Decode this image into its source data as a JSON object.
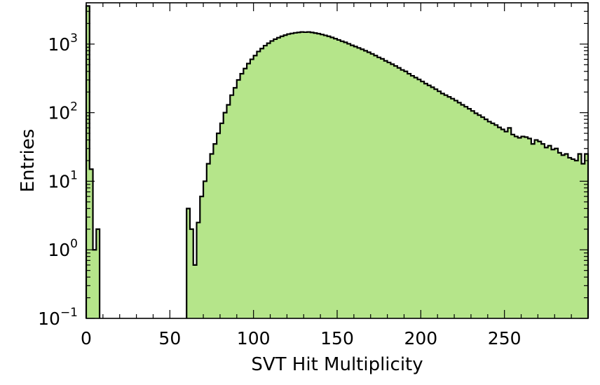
{
  "chart_data": {
    "type": "histogram",
    "title": "",
    "xlabel": "SVT Hit Multiplicity",
    "ylabel": "Entries",
    "yscale": "log",
    "xlim": [
      0,
      300
    ],
    "ylim": [
      0.1,
      4000
    ],
    "bin_width": 2,
    "fill_color": "#b5e58a",
    "line_color": "#000000",
    "grid": false,
    "legend": "none",
    "x_ticks": [
      {
        "value": 0,
        "label": "0"
      },
      {
        "value": 50,
        "label": "50"
      },
      {
        "value": 100,
        "label": "100"
      },
      {
        "value": 150,
        "label": "150"
      },
      {
        "value": 200,
        "label": "200"
      },
      {
        "value": 250,
        "label": "250"
      }
    ],
    "y_ticks": [
      {
        "value": 0.1,
        "base": "10",
        "exp": "−1"
      },
      {
        "value": 1,
        "base": "10",
        "exp": "0"
      },
      {
        "value": 10,
        "base": "10",
        "exp": "1"
      },
      {
        "value": 100,
        "base": "10",
        "exp": "2"
      },
      {
        "value": 1000,
        "base": "10",
        "exp": "3"
      }
    ],
    "bins": [
      [
        0,
        3600
      ],
      [
        2,
        15
      ],
      [
        4,
        1
      ],
      [
        6,
        2
      ],
      [
        60,
        4
      ],
      [
        62,
        2
      ],
      [
        64,
        0.6
      ],
      [
        66,
        2.5
      ],
      [
        68,
        6
      ],
      [
        70,
        10
      ],
      [
        72,
        18
      ],
      [
        74,
        25
      ],
      [
        76,
        35
      ],
      [
        78,
        50
      ],
      [
        80,
        70
      ],
      [
        82,
        100
      ],
      [
        84,
        130
      ],
      [
        86,
        180
      ],
      [
        88,
        230
      ],
      [
        90,
        300
      ],
      [
        92,
        370
      ],
      [
        94,
        440
      ],
      [
        96,
        520
      ],
      [
        98,
        600
      ],
      [
        100,
        680
      ],
      [
        102,
        780
      ],
      [
        104,
        860
      ],
      [
        106,
        950
      ],
      [
        108,
        1030
      ],
      [
        110,
        1110
      ],
      [
        112,
        1180
      ],
      [
        114,
        1240
      ],
      [
        116,
        1300
      ],
      [
        118,
        1350
      ],
      [
        120,
        1400
      ],
      [
        122,
        1430
      ],
      [
        124,
        1460
      ],
      [
        126,
        1480
      ],
      [
        128,
        1500
      ],
      [
        130,
        1490
      ],
      [
        132,
        1500
      ],
      [
        134,
        1480
      ],
      [
        136,
        1450
      ],
      [
        138,
        1420
      ],
      [
        140,
        1380
      ],
      [
        142,
        1340
      ],
      [
        144,
        1300
      ],
      [
        146,
        1250
      ],
      [
        148,
        1200
      ],
      [
        150,
        1150
      ],
      [
        152,
        1100
      ],
      [
        154,
        1060
      ],
      [
        156,
        1010
      ],
      [
        158,
        960
      ],
      [
        160,
        920
      ],
      [
        162,
        880
      ],
      [
        164,
        840
      ],
      [
        166,
        800
      ],
      [
        168,
        760
      ],
      [
        170,
        720
      ],
      [
        172,
        680
      ],
      [
        174,
        640
      ],
      [
        176,
        610
      ],
      [
        178,
        570
      ],
      [
        180,
        540
      ],
      [
        182,
        510
      ],
      [
        184,
        480
      ],
      [
        186,
        450
      ],
      [
        188,
        420
      ],
      [
        190,
        400
      ],
      [
        192,
        370
      ],
      [
        194,
        345
      ],
      [
        196,
        325
      ],
      [
        198,
        305
      ],
      [
        200,
        285
      ],
      [
        202,
        265
      ],
      [
        204,
        250
      ],
      [
        206,
        235
      ],
      [
        208,
        220
      ],
      [
        210,
        205
      ],
      [
        212,
        190
      ],
      [
        214,
        180
      ],
      [
        216,
        170
      ],
      [
        218,
        160
      ],
      [
        220,
        150
      ],
      [
        222,
        140
      ],
      [
        224,
        130
      ],
      [
        226,
        122
      ],
      [
        228,
        114
      ],
      [
        230,
        106
      ],
      [
        232,
        98
      ],
      [
        234,
        92
      ],
      [
        236,
        86
      ],
      [
        238,
        80
      ],
      [
        240,
        74
      ],
      [
        242,
        70
      ],
      [
        244,
        66
      ],
      [
        246,
        61
      ],
      [
        248,
        57
      ],
      [
        250,
        53
      ],
      [
        252,
        60
      ],
      [
        254,
        48
      ],
      [
        256,
        45
      ],
      [
        258,
        43
      ],
      [
        260,
        45
      ],
      [
        262,
        44
      ],
      [
        264,
        42
      ],
      [
        266,
        35
      ],
      [
        268,
        40
      ],
      [
        270,
        38
      ],
      [
        272,
        35
      ],
      [
        274,
        31
      ],
      [
        276,
        33
      ],
      [
        278,
        29
      ],
      [
        280,
        30
      ],
      [
        282,
        26
      ],
      [
        284,
        24
      ],
      [
        286,
        25
      ],
      [
        288,
        22
      ],
      [
        290,
        21
      ],
      [
        292,
        20
      ],
      [
        294,
        25
      ],
      [
        296,
        18
      ],
      [
        298,
        25
      ]
    ]
  }
}
